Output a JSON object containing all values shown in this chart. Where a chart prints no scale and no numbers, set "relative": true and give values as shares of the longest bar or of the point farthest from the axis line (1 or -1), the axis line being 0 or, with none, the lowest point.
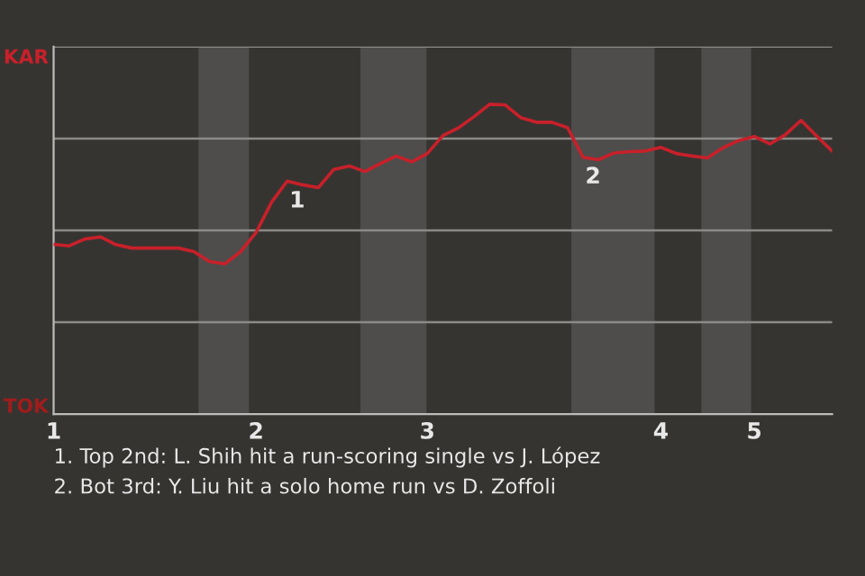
{
  "chart_data": {
    "type": "line",
    "relative": true,
    "categories": [
      "1",
      null,
      null,
      null,
      null,
      null,
      null,
      null,
      null,
      null,
      null,
      null,
      null,
      "2",
      null,
      null,
      null,
      null,
      null,
      null,
      null,
      null,
      null,
      null,
      "3",
      null,
      null,
      null,
      null,
      null,
      null,
      null,
      null,
      null,
      null,
      null,
      null,
      null,
      null,
      "4",
      null,
      null,
      null,
      null,
      null,
      "5",
      null,
      null,
      null,
      null,
      null
    ],
    "series": [
      {
        "color": "#c8202a",
        "values": [
          0.548,
          0.543,
          0.565,
          0.572,
          0.547,
          0.536,
          0.536,
          0.536,
          0.536,
          0.525,
          0.493,
          0.485,
          0.524,
          0.586,
          0.684,
          0.752,
          0.74,
          0.731,
          0.79,
          0.801,
          0.783,
          0.809,
          0.833,
          0.814,
          0.841,
          0.899,
          0.924,
          0.96,
          1,
          0.998,
          0.957,
          0.942,
          0.942,
          0.925,
          0.829,
          0.821,
          0.843,
          0.847,
          0.849,
          0.861,
          0.841,
          0.833,
          0.827,
          0.86,
          0.883,
          0.896,
          0.872,
          0.902,
          0.948,
          0.898,
          0.849
        ]
      }
    ],
    "grid": "y",
    "annotations": [
      "KAR",
      "TOK",
      {
        "text": "1",
        "y": 0.752
      },
      {
        "text": "2",
        "y": 0.829
      },
      "1. Top 2nd: L. Shih hit a run-scoring single vs J. López",
      "2. Bot 3rd: Y. Liu hit a solo home run vs D. Zoffoli"
    ]
  }
}
